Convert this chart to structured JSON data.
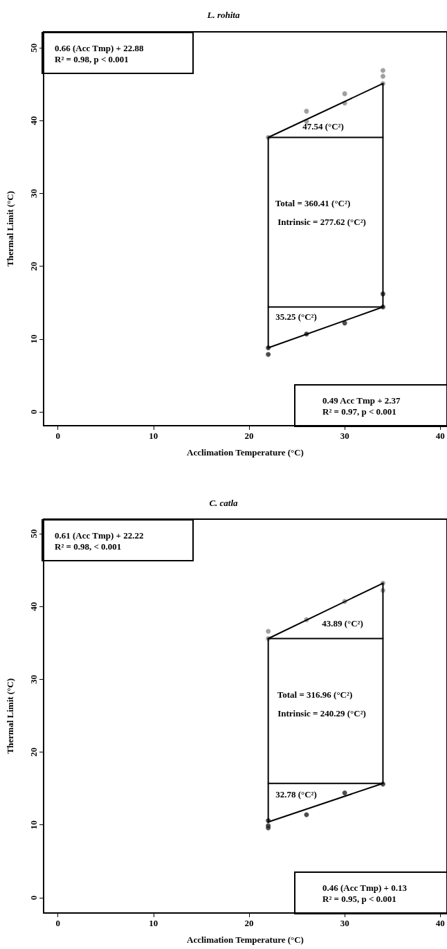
{
  "chart_data": [
    {
      "type": "scatter",
      "title": "L. rohita",
      "xlabel": "Acclimation Temperature (°C)",
      "ylabel": "Thermal Limit (°C)",
      "xlim": [
        -1.5,
        40.7
      ],
      "ylim": [
        -1.9,
        52.2
      ],
      "xticks": [
        0,
        10,
        20,
        30,
        40
      ],
      "yticks": [
        0,
        10,
        20,
        30,
        40,
        50
      ],
      "grid": false,
      "series": [
        {
          "type": "scatter",
          "marker": "circle",
          "color": "#8a8a8a",
          "x": [
            22,
            26,
            26,
            30,
            30,
            34,
            34,
            34
          ],
          "values": [
            37.7,
            41.3,
            39.9,
            43.7,
            42.4,
            46.9,
            46.1,
            45.1
          ]
        },
        {
          "type": "scatter",
          "marker": "circle",
          "color": "#222222",
          "x": [
            22,
            22,
            26,
            30,
            34,
            34
          ],
          "values": [
            8.8,
            7.9,
            10.7,
            12.2,
            14.4,
            16.2
          ]
        },
        {
          "type": "line",
          "marker": "none",
          "color": "#000000",
          "x": [
            22,
            34
          ],
          "values": [
            37.7,
            45.1
          ]
        },
        {
          "type": "line",
          "marker": "none",
          "color": "#000000",
          "x": [
            22,
            34
          ],
          "values": [
            8.8,
            14.4
          ]
        },
        {
          "type": "line",
          "marker": "none",
          "color": "#000000",
          "x": [
            22,
            22,
            34
          ],
          "values": [
            8.8,
            37.7,
            37.7
          ]
        },
        {
          "type": "line",
          "marker": "none",
          "color": "#000000",
          "x": [
            34,
            34,
            22
          ],
          "values": [
            45.1,
            14.4,
            14.4
          ]
        }
      ],
      "annotations": [
        "0.66 (Acc Tmp) + 22.88\nR² = 0.98, p < 0.001",
        "0.49 Acc Tmp + 2.37\nR² = 0.97, p < 0.001",
        "47.54 (°C²)",
        "Total = 360.41 (°C²)",
        "Intrinsic = 277.62 (°C²)",
        "35.25 (°C²)"
      ]
    },
    {
      "type": "scatter",
      "title": "C. catla",
      "xlabel": "Acclimation Temperature (°C)",
      "ylabel": "Thermal Limit (°C)",
      "xlim": [
        -1.5,
        40.7
      ],
      "ylim": [
        -2.1,
        52.0
      ],
      "xticks": [
        0,
        10,
        20,
        30,
        40
      ],
      "yticks": [
        0,
        10,
        20,
        30,
        40,
        50
      ],
      "grid": false,
      "series": [
        {
          "type": "scatter",
          "marker": "circle",
          "color": "#8a8a8a",
          "x": [
            22,
            22,
            26,
            30,
            34,
            34
          ],
          "values": [
            36.6,
            35.6,
            38.2,
            40.7,
            43.2,
            42.2
          ]
        },
        {
          "type": "scatter",
          "marker": "circle",
          "color": "#222222",
          "x": [
            22,
            22,
            22,
            26,
            30,
            34
          ],
          "values": [
            10.6,
            9.9,
            9.6,
            11.4,
            14.4,
            15.6
          ]
        },
        {
          "type": "line",
          "marker": "none",
          "color": "#000000",
          "x": [
            22,
            34
          ],
          "values": [
            35.6,
            43.2
          ]
        },
        {
          "type": "line",
          "marker": "none",
          "color": "#000000",
          "x": [
            22,
            34
          ],
          "values": [
            10.4,
            15.7
          ]
        },
        {
          "type": "line",
          "marker": "none",
          "color": "#000000",
          "x": [
            22,
            22,
            34
          ],
          "values": [
            10.4,
            35.6,
            35.6
          ]
        },
        {
          "type": "line",
          "marker": "none",
          "color": "#000000",
          "x": [
            34,
            34,
            22
          ],
          "values": [
            43.2,
            15.7,
            15.7
          ]
        }
      ],
      "annotations": [
        "0.61 (Acc Tmp) + 22.22\nR² = 0.98, < 0.001",
        "0.46 (Acc Tmp) + 0.13\nR² = 0.95, p < 0.001",
        "43.89 (°C²)",
        "Total = 316.96 (°C²)",
        "Intrinsic = 240.29 (°C²)",
        "32.78 (°C²)"
      ]
    }
  ]
}
